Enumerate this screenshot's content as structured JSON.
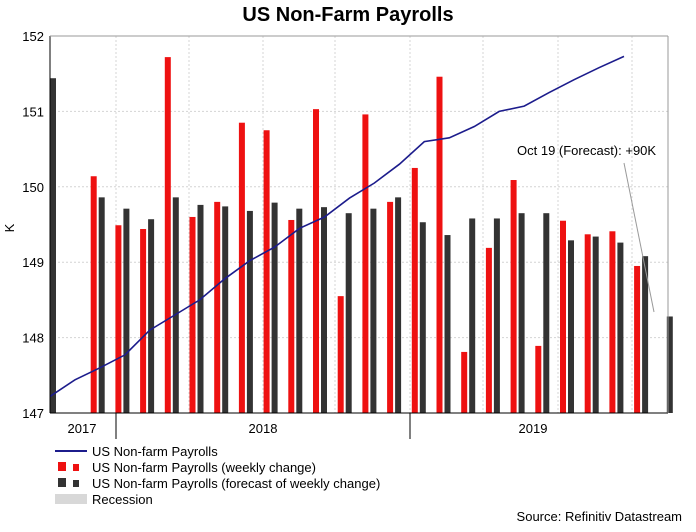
{
  "chart_data": {
    "type": "bar",
    "title": "US Non-Farm Payrolls",
    "ylabel": "K",
    "ylim": [
      147,
      152
    ],
    "yticks": [
      "147",
      "148",
      "149",
      "150",
      "151",
      "152"
    ],
    "xticks": [
      "2017",
      "2018",
      "2019"
    ],
    "grid": true,
    "source": "Source: Refinitiv Datastream",
    "annotation": "Oct 19 (Forecast): +90K",
    "legend": [
      {
        "name": "US Non-farm Payrolls",
        "kind": "line",
        "color": "#1c1c8c"
      },
      {
        "name": "US Non-farm Payrolls (weekly change)",
        "kind": "bar",
        "color": "#ee1111"
      },
      {
        "name": "US Non-farm Payrolls (forecast of weekly change)",
        "kind": "bar",
        "color": "#333333"
      },
      {
        "name": "Recession",
        "kind": "area",
        "color": "#d8d8d8"
      }
    ],
    "series": [
      {
        "name": "US Non-farm Payrolls (weekly change)",
        "values": [
          null,
          150.14,
          149.49,
          149.44,
          151.72,
          149.6,
          149.8,
          150.85,
          150.75,
          149.56,
          151.03,
          148.55,
          150.96,
          149.8,
          150.25,
          151.46,
          147.81,
          149.19,
          150.09,
          147.89,
          149.55,
          149.37,
          149.41,
          148.95,
          null
        ],
        "color": "#ee1111"
      },
      {
        "name": "US Non-farm Payrolls (forecast of weekly change)",
        "values": [
          151.44,
          149.86,
          149.71,
          149.57,
          149.86,
          149.76,
          149.74,
          149.68,
          149.79,
          149.71,
          149.73,
          149.65,
          149.71,
          149.86,
          149.53,
          149.36,
          149.58,
          149.58,
          149.65,
          149.65,
          149.29,
          149.34,
          149.26,
          149.08,
          148.28
        ],
        "color": "#333333"
      },
      {
        "name": "US Non-farm Payrolls",
        "values": [
          147.22,
          147.44,
          147.6,
          147.77,
          148.1,
          148.3,
          148.5,
          148.78,
          149.02,
          149.2,
          149.45,
          149.6,
          149.85,
          150.05,
          150.3,
          150.6,
          150.65,
          150.8,
          151.0,
          151.07,
          151.25,
          151.42,
          151.58,
          151.73
        ],
        "color": "#1c1c8c"
      }
    ]
  }
}
